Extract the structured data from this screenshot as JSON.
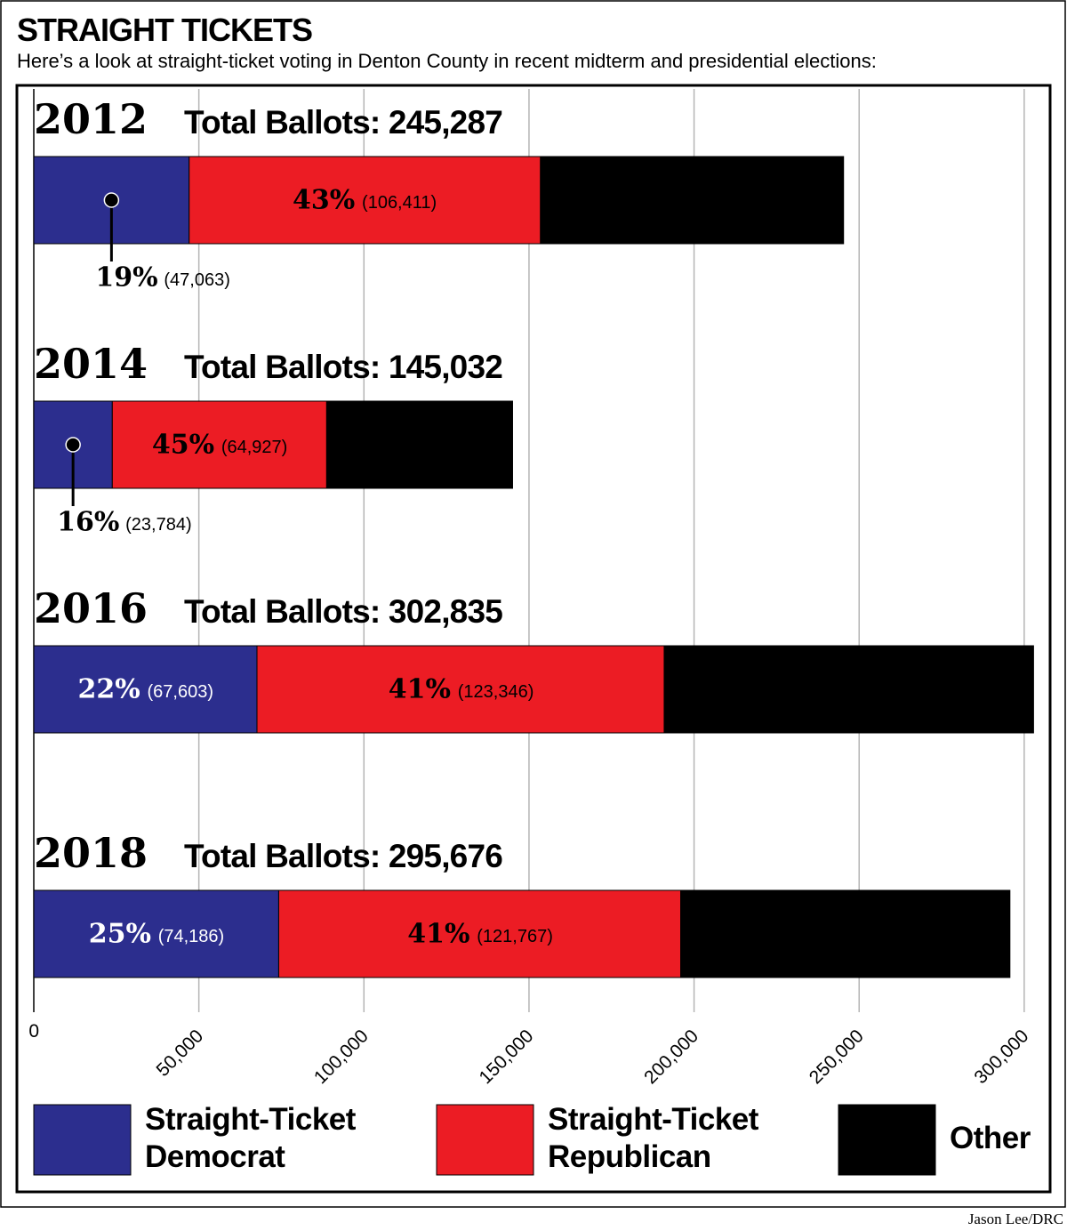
{
  "chart_data": {
    "type": "stacked_bar",
    "title": "STRAIGHT TICKETS",
    "subtitle": "Here’s a look at straight-ticket voting in Denton County in recent midterm and presidential elections:",
    "categories": [
      "2012",
      "2014",
      "2016",
      "2018"
    ],
    "total_labels": [
      "Total Ballots: 245,287",
      "Total Ballots: 145,032",
      "Total Ballots: 302,835",
      "Total Ballots: 295,676"
    ],
    "series": [
      {
        "name": "Straight-Ticket Democrat",
        "color": "#2c2e8e",
        "values": [
          47063,
          23784,
          67603,
          74186
        ],
        "value_labels": [
          "(47,063)",
          "(23,784)",
          "(67,603)",
          "(74,186)"
        ],
        "percent_labels": [
          "19%",
          "16%",
          "22%",
          "25%"
        ],
        "label_color": "#ffffff"
      },
      {
        "name": "Straight-Ticket Republican",
        "color": "#ec1c24",
        "values": [
          106411,
          64927,
          123346,
          121767
        ],
        "value_labels": [
          "(106,411)",
          "(64,927)",
          "(123,346)",
          "(121,767)"
        ],
        "percent_labels": [
          "43%",
          "45%",
          "41%",
          "41%"
        ],
        "label_color": "#000000"
      },
      {
        "name": "Other",
        "color": "#000000",
        "values": [
          91813,
          56321,
          111886,
          99723
        ]
      }
    ],
    "xlim": [
      0,
      303000
    ],
    "xticks": [
      0,
      {
        "value": 50000,
        "label": "50,000"
      },
      {
        "value": 100000,
        "label": "100,000"
      },
      {
        "value": 150000,
        "label": "150,000"
      },
      {
        "value": 200000,
        "label": "200,000"
      },
      {
        "value": 250000,
        "label": "250,000"
      },
      {
        "value": 300000,
        "label": "300,000"
      }
    ],
    "grid": true
  },
  "credit": "Jason Lee/DRC"
}
